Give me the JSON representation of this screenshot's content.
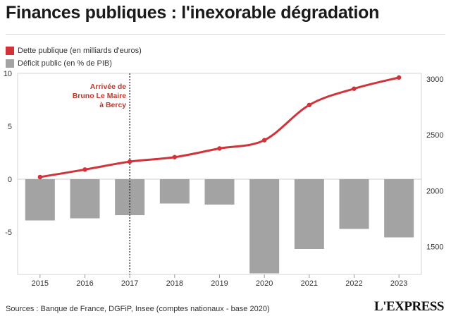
{
  "header": {
    "title": "Finances publiques : l'inexorable dégradation"
  },
  "legend": {
    "items": [
      {
        "label": "Dette publique (en milliards d'euros)",
        "color": "#d0343a"
      },
      {
        "label": "Déficit public (en % de PIB)",
        "color": "#a3a3a3"
      }
    ]
  },
  "chart_data": {
    "type": "bar",
    "categories": [
      "2015",
      "2016",
      "2017",
      "2018",
      "2019",
      "2020",
      "2021",
      "2022",
      "2023"
    ],
    "series": [
      {
        "name": "Déficit public (en % de PIB)",
        "type": "bar",
        "axis": "left",
        "color": "#a3a3a3",
        "values": [
          -3.9,
          -3.7,
          -3.4,
          -2.3,
          -2.4,
          -8.9,
          -6.6,
          -4.7,
          -5.5
        ]
      },
      {
        "name": "Dette publique (en milliards d'euros)",
        "type": "line",
        "axis": "right",
        "color": "#d0343a",
        "values": [
          2122,
          2189,
          2260,
          2300,
          2378,
          2452,
          2767,
          2913,
          3013
        ]
      }
    ],
    "left_axis": {
      "ylim": [
        -9,
        10
      ],
      "ticks": [
        10,
        5,
        0,
        -5
      ]
    },
    "right_axis": {
      "ylim": [
        1250,
        3050
      ],
      "ticks": [
        3000,
        2500,
        2000,
        1500
      ]
    },
    "annotation": {
      "lines": [
        "Arrivée de",
        "Bruno Le Maire",
        "à Bercy"
      ],
      "at_category": "2017",
      "color": "#c0392b"
    },
    "grid": false,
    "legend_position": "top-left"
  },
  "footer": {
    "source": "Sources : Banque de France, DGFiP, Insee (comptes nationaux - base 2020)",
    "logo": "L'EXPRESS"
  }
}
